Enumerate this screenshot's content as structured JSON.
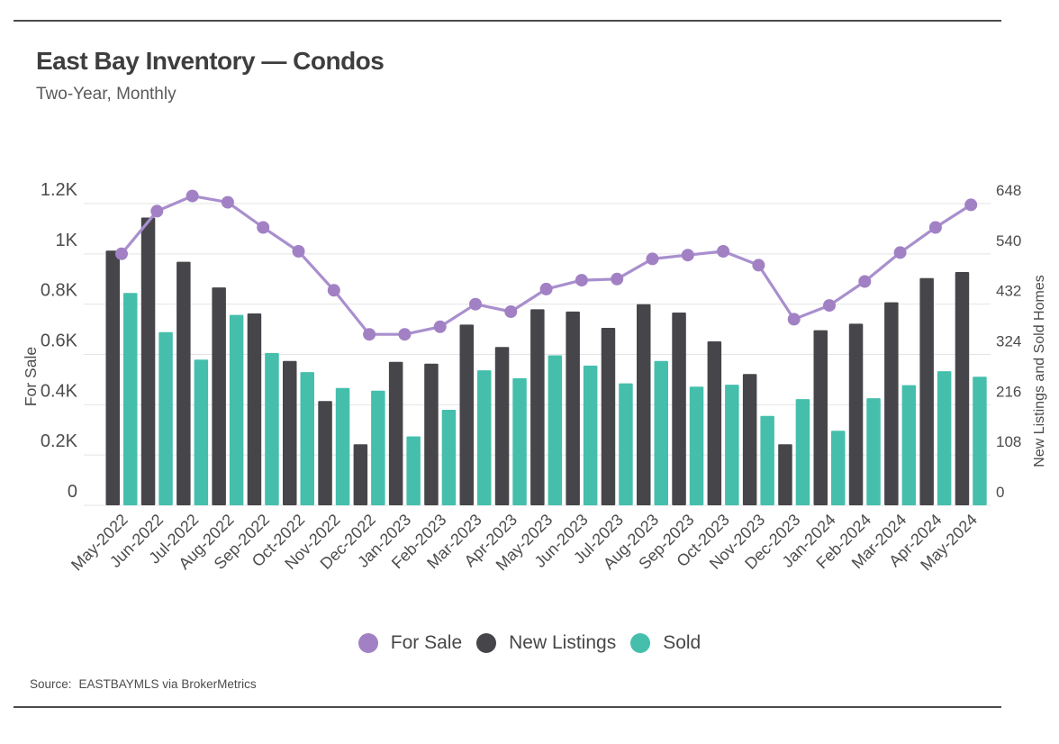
{
  "page": {
    "title": "East Bay Inventory — Condos",
    "subtitle": "Two-Year, Monthly",
    "source_label": "Source:",
    "source_value": "EASTBAYMLS via BrokerMetrics"
  },
  "colors": {
    "for_sale_line": "#a98fce",
    "for_sale_dot": "#a181c4",
    "new_listings": "#46464a",
    "sold": "#45bfac",
    "gridline": "#e4e4e4",
    "axis_text": "#4c4c4c",
    "rule": "#4b4b4b"
  },
  "chart_data": {
    "type": "bar",
    "subtype": "dual-axis combo: line series on left axis, grouped bars on right axis",
    "title": "East Bay Inventory — Condos",
    "subtitle": "Two-Year, Monthly",
    "categories": [
      "May-2022",
      "Jun-2022",
      "Jul-2022",
      "Aug-2022",
      "Sep-2022",
      "Oct-2022",
      "Nov-2022",
      "Dec-2022",
      "Jan-2023",
      "Feb-2023",
      "Mar-2023",
      "Apr-2023",
      "May-2023",
      "Jun-2023",
      "Jul-2023",
      "Aug-2023",
      "Sep-2023",
      "Oct-2023",
      "Nov-2023",
      "Dec-2023",
      "Jan-2024",
      "Feb-2024",
      "Mar-2024",
      "Apr-2024",
      "May-2024"
    ],
    "series": [
      {
        "name": "For Sale",
        "type": "line",
        "axis": "left",
        "color": "#a181c4",
        "values": [
          1000,
          1170,
          1230,
          1205,
          1105,
          1010,
          855,
          680,
          680,
          710,
          800,
          770,
          860,
          895,
          900,
          980,
          995,
          1010,
          955,
          740,
          795,
          890,
          1005,
          1105,
          1195
        ]
      },
      {
        "name": "New Listings",
        "type": "bar",
        "axis": "right",
        "color": "#46464a",
        "values": [
          547,
          618,
          523,
          468,
          412,
          310,
          224,
          131,
          308,
          304,
          388,
          340,
          421,
          416,
          381,
          432,
          414,
          352,
          282,
          131,
          376,
          390,
          436,
          488,
          501
        ]
      },
      {
        "name": "Sold",
        "type": "bar",
        "axis": "right",
        "color": "#45bfac",
        "values": [
          456,
          372,
          313,
          409,
          327,
          286,
          252,
          246,
          148,
          205,
          290,
          273,
          322,
          300,
          262,
          310,
          255,
          259,
          192,
          228,
          160,
          230,
          258,
          288,
          276
        ]
      }
    ],
    "left_axis": {
      "title": "For Sale",
      "range": [
        0,
        1200
      ],
      "tick_step": 200,
      "ticks": [
        "0",
        "0.2K",
        "0.4K",
        "0.6K",
        "0.8K",
        "1K",
        "1.2K"
      ]
    },
    "right_axis": {
      "title": "New Listings and Sold Homes",
      "range": [
        0,
        648
      ],
      "tick_step": 108,
      "ticks": [
        "0",
        "108",
        "216",
        "324",
        "432",
        "540",
        "648"
      ]
    },
    "grid": true,
    "legend_position": "bottom",
    "source": "Source: EASTBAYMLS via BrokerMetrics"
  }
}
